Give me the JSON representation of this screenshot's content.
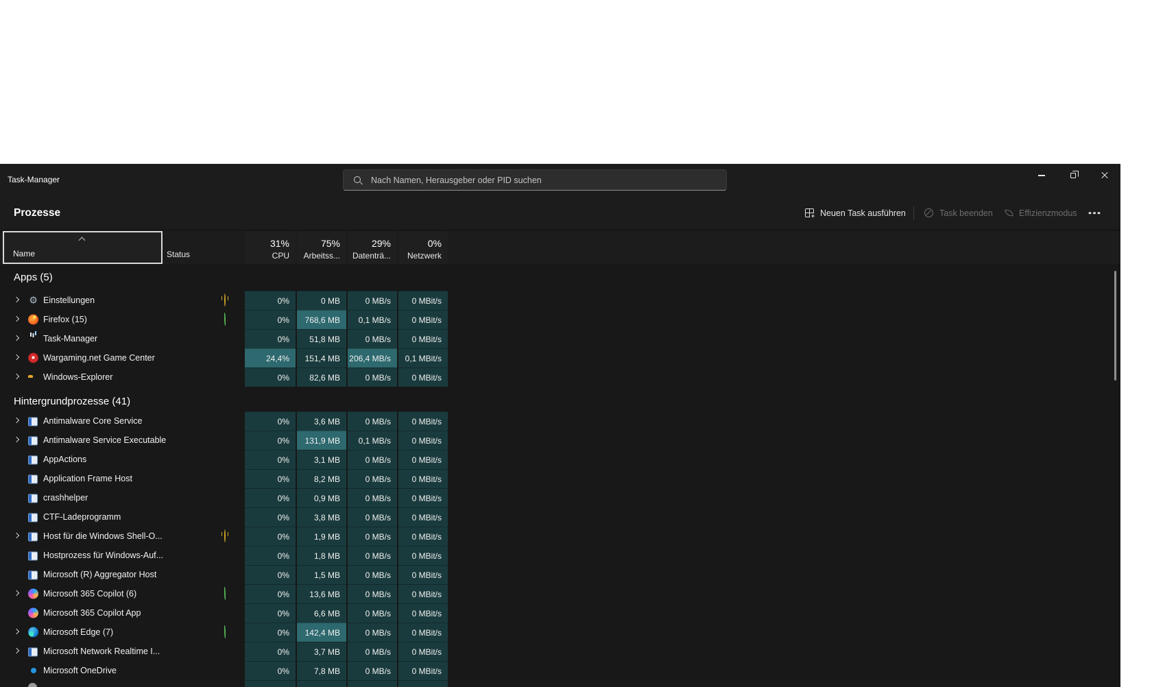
{
  "window": {
    "title": "Task-Manager"
  },
  "titlebar": {
    "search_placeholder": "Nach Namen, Herausgeber oder PID suchen"
  },
  "toolbar": {
    "page_title": "Prozesse",
    "run_new_task": "Neuen Task ausführen",
    "end_task": "Task beenden",
    "efficiency_mode": "Effizienzmodus"
  },
  "header": {
    "name": "Name",
    "status": "Status",
    "columns": [
      {
        "percent": "31%",
        "label": "CPU"
      },
      {
        "percent": "75%",
        "label": "Arbeitss..."
      },
      {
        "percent": "29%",
        "label": "Datenträ..."
      },
      {
        "percent": "0%",
        "label": "Netzwerk"
      }
    ]
  },
  "groups": [
    {
      "label": "Apps (5)",
      "rows": [
        {
          "name": "Einstellungen",
          "icon": "gear",
          "chevron": true,
          "status": "pause",
          "values": [
            "0%",
            "0 MB",
            "0 MB/s",
            "0 MBit/s"
          ],
          "hi": []
        },
        {
          "name": "Firefox (15)",
          "icon": "firefox",
          "chevron": true,
          "status": "leaf",
          "values": [
            "0%",
            "768,6 MB",
            "0,1 MB/s",
            "0 MBit/s"
          ],
          "hi": [
            1
          ]
        },
        {
          "name": "Task-Manager",
          "icon": "taskmgr",
          "chevron": true,
          "status": "",
          "values": [
            "0%",
            "51,8 MB",
            "0 MB/s",
            "0 MBit/s"
          ],
          "hi": []
        },
        {
          "name": "Wargaming.net Game Center",
          "icon": "warg",
          "chevron": true,
          "status": "",
          "values": [
            "24,4%",
            "151,4 MB",
            "206,4 MB/s",
            "0,1 MBit/s"
          ],
          "hi": [
            0,
            2
          ]
        },
        {
          "name": "Windows-Explorer",
          "icon": "folder",
          "chevron": true,
          "status": "",
          "values": [
            "0%",
            "82,6 MB",
            "0 MB/s",
            "0 MBit/s"
          ],
          "hi": []
        }
      ]
    },
    {
      "label": "Hintergrundprozesse (41)",
      "rows": [
        {
          "name": "Antimalware Core Service",
          "icon": "app",
          "chevron": true,
          "status": "",
          "values": [
            "0%",
            "3,6 MB",
            "0 MB/s",
            "0 MBit/s"
          ],
          "hi": []
        },
        {
          "name": "Antimalware Service Executable",
          "icon": "app",
          "chevron": true,
          "status": "",
          "values": [
            "0%",
            "131,9 MB",
            "0,1 MB/s",
            "0 MBit/s"
          ],
          "hi": [
            1
          ]
        },
        {
          "name": "AppActions",
          "icon": "app",
          "chevron": false,
          "status": "",
          "values": [
            "0%",
            "3,1 MB",
            "0 MB/s",
            "0 MBit/s"
          ],
          "hi": []
        },
        {
          "name": "Application Frame Host",
          "icon": "app",
          "chevron": false,
          "status": "",
          "values": [
            "0%",
            "8,2 MB",
            "0 MB/s",
            "0 MBit/s"
          ],
          "hi": []
        },
        {
          "name": "crashhelper",
          "icon": "app",
          "chevron": false,
          "status": "",
          "values": [
            "0%",
            "0,9 MB",
            "0 MB/s",
            "0 MBit/s"
          ],
          "hi": []
        },
        {
          "name": "CTF-Ladeprogramm",
          "icon": "app",
          "chevron": false,
          "status": "",
          "values": [
            "0%",
            "3,8 MB",
            "0 MB/s",
            "0 MBit/s"
          ],
          "hi": []
        },
        {
          "name": "Host für die Windows Shell-O...",
          "icon": "app",
          "chevron": true,
          "status": "pause",
          "values": [
            "0%",
            "1,9 MB",
            "0 MB/s",
            "0 MBit/s"
          ],
          "hi": []
        },
        {
          "name": "Hostprozess für Windows-Auf...",
          "icon": "app",
          "chevron": false,
          "status": "",
          "values": [
            "0%",
            "1,8 MB",
            "0 MB/s",
            "0 MBit/s"
          ],
          "hi": []
        },
        {
          "name": "Microsoft (R) Aggregator Host",
          "icon": "app",
          "chevron": false,
          "status": "",
          "values": [
            "0%",
            "1,5 MB",
            "0 MB/s",
            "0 MBit/s"
          ],
          "hi": []
        },
        {
          "name": "Microsoft 365 Copilot (6)",
          "icon": "copilot",
          "chevron": true,
          "status": "leaf",
          "values": [
            "0%",
            "13,6 MB",
            "0 MB/s",
            "0 MBit/s"
          ],
          "hi": []
        },
        {
          "name": "Microsoft 365 Copilot App",
          "icon": "copilot",
          "chevron": false,
          "status": "",
          "values": [
            "0%",
            "6,6 MB",
            "0 MB/s",
            "0 MBit/s"
          ],
          "hi": []
        },
        {
          "name": "Microsoft Edge (7)",
          "icon": "edge",
          "chevron": true,
          "status": "leaf",
          "values": [
            "0%",
            "142,4 MB",
            "0 MB/s",
            "0 MBit/s"
          ],
          "hi": [
            1
          ]
        },
        {
          "name": "Microsoft Network Realtime I...",
          "icon": "app",
          "chevron": true,
          "status": "",
          "values": [
            "0%",
            "3,7 MB",
            "0 MB/s",
            "0 MBit/s"
          ],
          "hi": []
        },
        {
          "name": "Microsoft OneDrive",
          "icon": "cloud",
          "chevron": false,
          "status": "",
          "values": [
            "0%",
            "7,8 MB",
            "0 MB/s",
            "0 MBit/s"
          ],
          "hi": []
        }
      ]
    }
  ],
  "partial_row": {
    "values": [
      "",
      "",
      "",
      ""
    ]
  },
  "colors": {
    "cell": "#1a3b3d",
    "cell_highlight": "#2d696e",
    "pause": "#c9a227",
    "leaf": "#55b455",
    "background": "#1c1c1c"
  }
}
